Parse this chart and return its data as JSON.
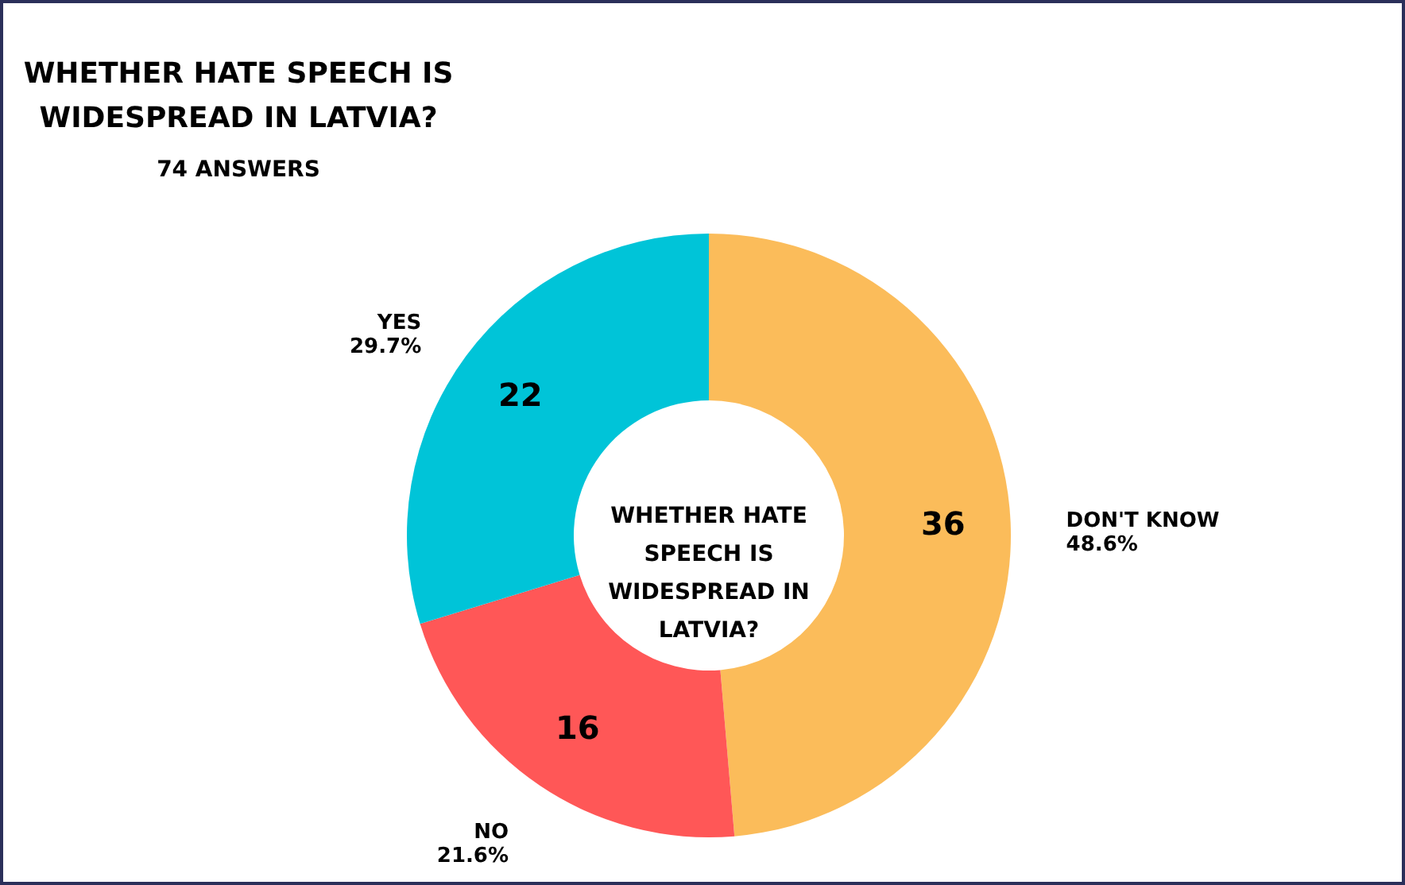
{
  "chart_data": {
    "type": "donut",
    "title": "WHETHER HATE SPEECH IS WIDESPREAD IN LATVIA?",
    "subtitle": "74 ANSWERS",
    "categories": [
      "DON'T KNOW",
      "NO",
      "YES"
    ],
    "values": [
      36,
      16,
      22
    ],
    "colors": [
      "#fbbc5a",
      "#ff5757",
      "#00c4d8"
    ],
    "data_labels": true,
    "annotations": [
      "WHETHER HATE SPEECH IS WIDESPREAD IN LATVIA?",
      "48.6%",
      "21.6%",
      "29.7%"
    ]
  }
}
